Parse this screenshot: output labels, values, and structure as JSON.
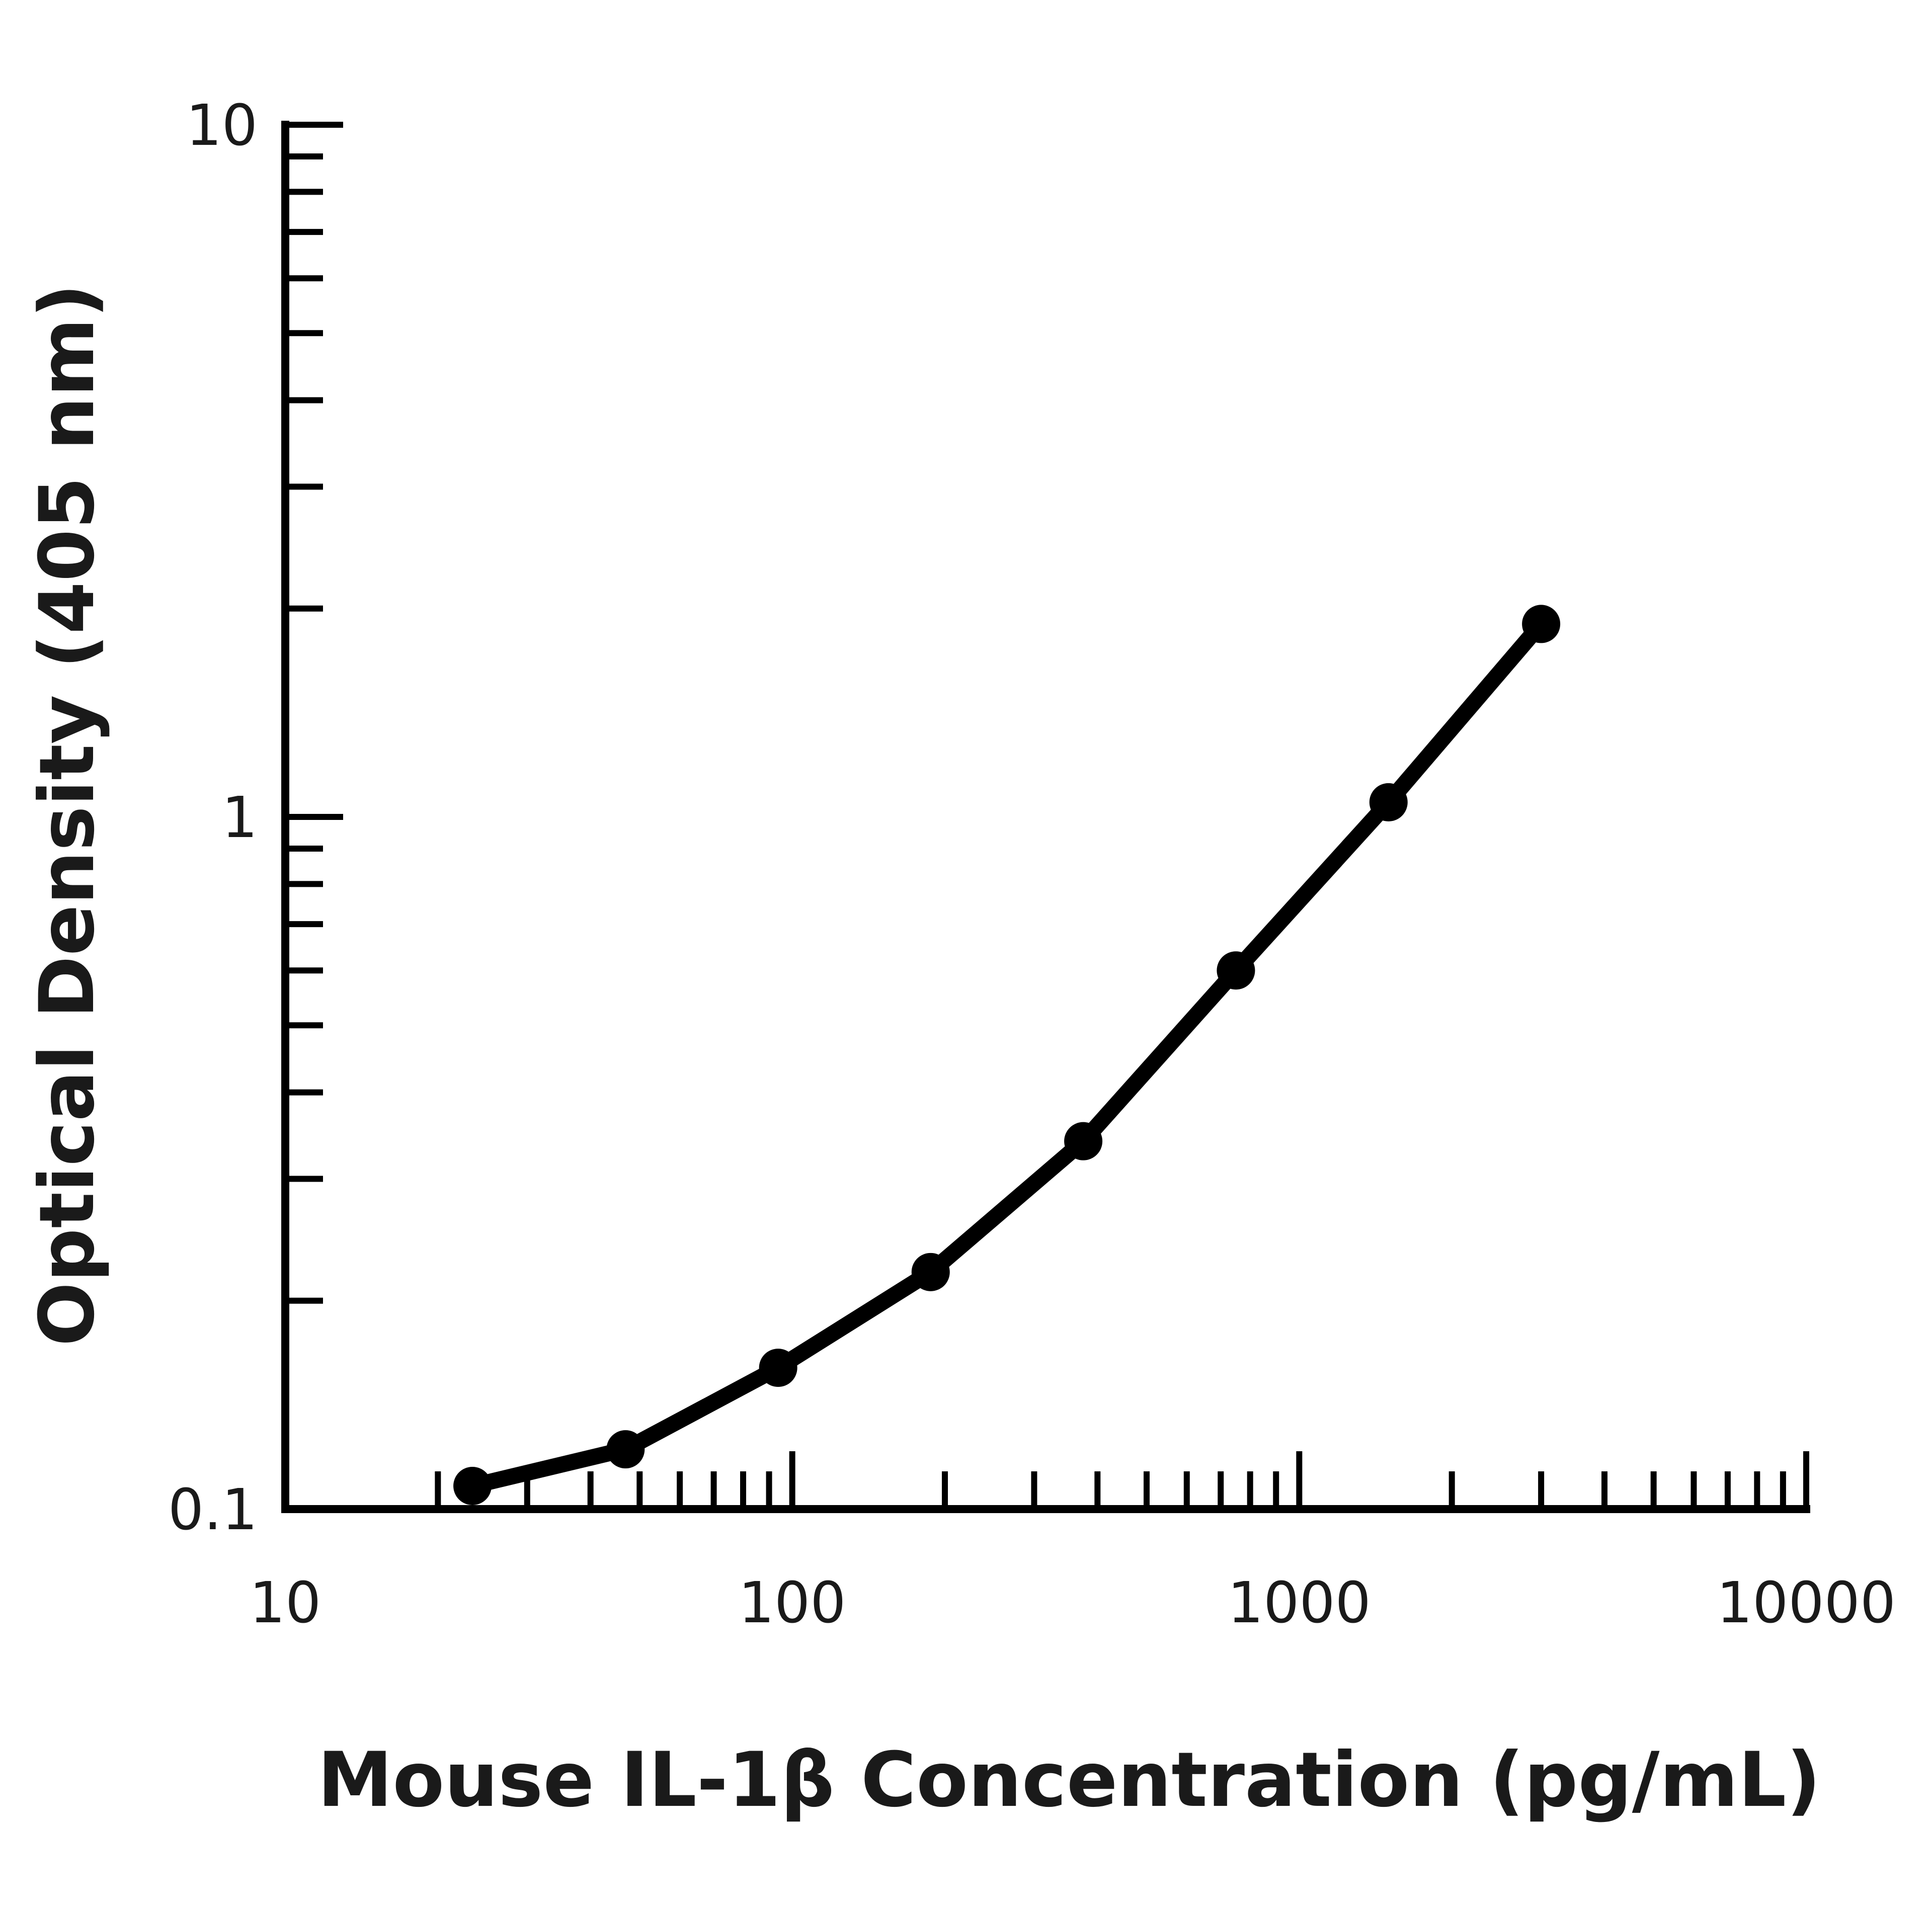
{
  "chart_data": {
    "type": "line",
    "title": "",
    "xlabel": "Mouse IL-1β Concentration (pg/mL)",
    "ylabel": "Optical Density (405 nm)",
    "xscale": "log",
    "yscale": "log",
    "xlim": [
      10,
      10000
    ],
    "ylim": [
      0.1,
      10
    ],
    "x_ticks": [
      {
        "value": 10,
        "label": "10"
      },
      {
        "value": 100,
        "label": "100"
      },
      {
        "value": 1000,
        "label": "1000"
      },
      {
        "value": 10000,
        "label": "10000"
      }
    ],
    "y_ticks": [
      {
        "value": 0.1,
        "label": "0.1"
      },
      {
        "value": 1,
        "label": "1"
      },
      {
        "value": 10,
        "label": "10"
      }
    ],
    "grid": false,
    "legend": "none",
    "series": [
      {
        "x": [
          23.4,
          46.9,
          93.8,
          187.5,
          375,
          750,
          1500,
          3000
        ],
        "y": [
          0.108,
          0.122,
          0.16,
          0.22,
          0.34,
          0.6,
          1.05,
          1.9
        ]
      }
    ],
    "colors": {
      "line": "#000000",
      "axes": "#000000",
      "text": "#1a1a1a"
    }
  }
}
